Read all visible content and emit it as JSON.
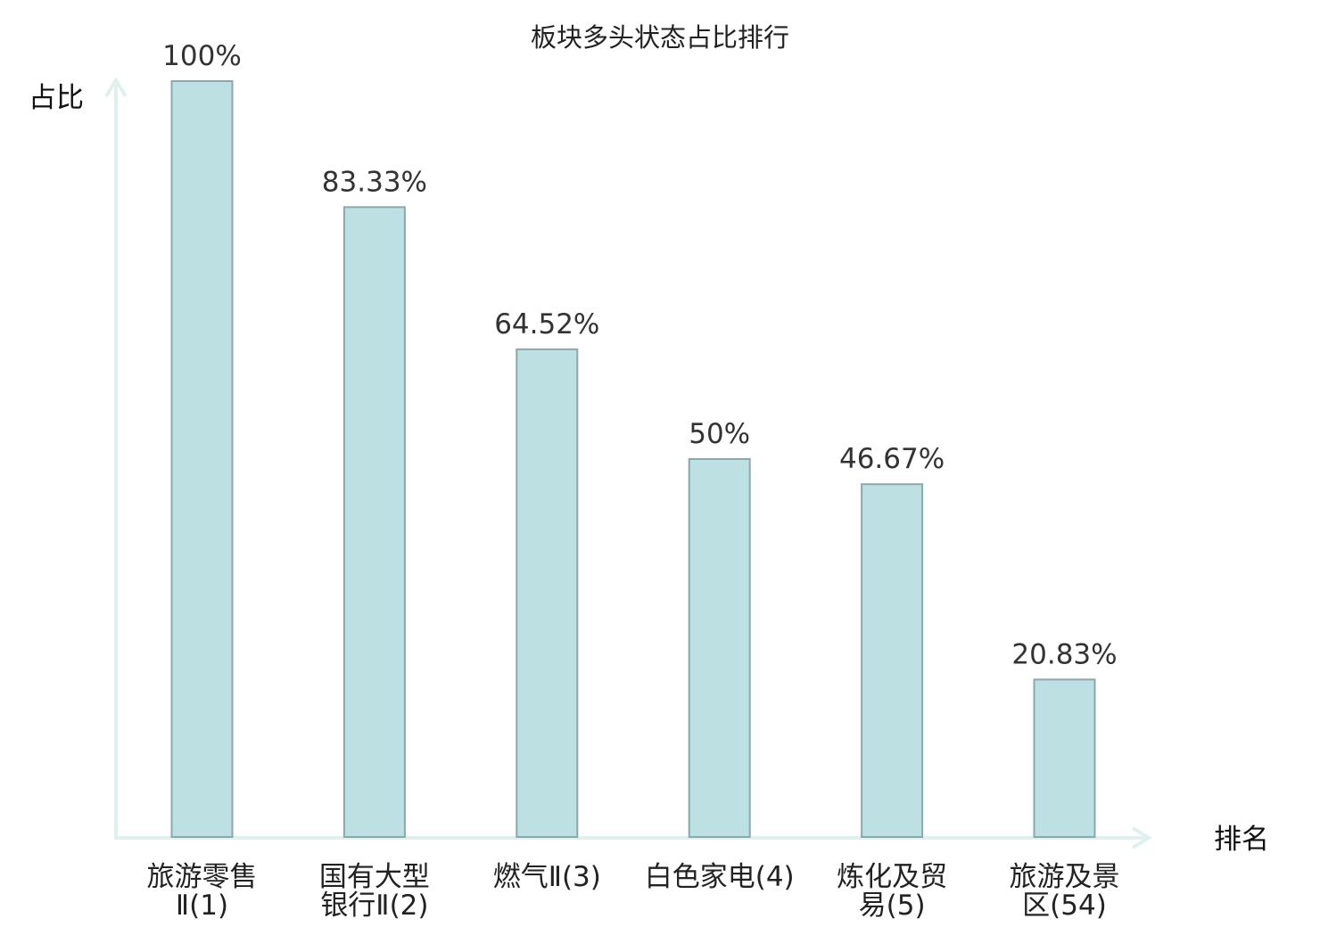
{
  "chart_data": {
    "type": "bar",
    "title": "板块多头状态占比排行",
    "ylabel": "占比",
    "xlabel": "排名",
    "ylim": [
      0,
      100
    ],
    "grid": false,
    "categories": [
      [
        "旅游零售",
        "Ⅱ(1)"
      ],
      [
        "国有大型",
        "银行Ⅱ(2)"
      ],
      [
        "燃气Ⅱ(3)"
      ],
      [
        "白色家电(4)"
      ],
      [
        "炼化及贸",
        "易(5)"
      ],
      [
        "旅游及景",
        "区(54)"
      ]
    ],
    "values": [
      100,
      83.33,
      64.52,
      50,
      46.67,
      20.83
    ],
    "value_labels": [
      "100%",
      "83.33%",
      "64.52%",
      "50%",
      "46.67%",
      "20.83%"
    ],
    "highlight_index": 5,
    "colors": {
      "bar_fill": "#bde0e3",
      "bar_stroke": "#8aa8ad",
      "axis": "#dff1ee",
      "highlight_text": "#e01818",
      "text": "#222222"
    }
  }
}
